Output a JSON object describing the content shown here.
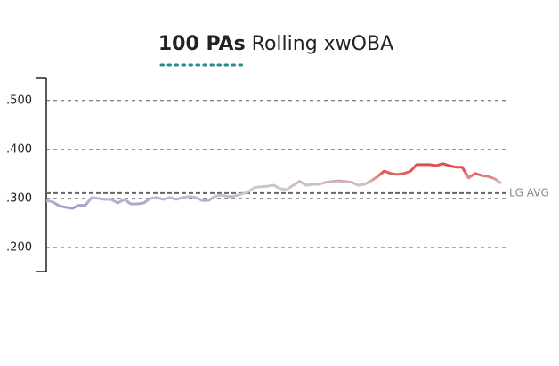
{
  "chart_data": {
    "type": "line",
    "title": {
      "emphasis": "100 PAs",
      "text": "Rolling xwOBA"
    },
    "values": [
      0.296,
      0.293,
      0.285,
      0.282,
      0.28,
      0.286,
      0.286,
      0.302,
      0.3,
      0.298,
      0.298,
      0.291,
      0.298,
      0.289,
      0.289,
      0.291,
      0.3,
      0.302,
      0.298,
      0.302,
      0.298,
      0.302,
      0.304,
      0.302,
      0.296,
      0.296,
      0.305,
      0.307,
      0.304,
      0.305,
      0.309,
      0.313,
      0.322,
      0.324,
      0.325,
      0.327,
      0.32,
      0.318,
      0.327,
      0.335,
      0.327,
      0.329,
      0.329,
      0.333,
      0.335,
      0.336,
      0.335,
      0.333,
      0.327,
      0.329,
      0.336,
      0.345,
      0.356,
      0.351,
      0.349,
      0.351,
      0.355,
      0.369,
      0.369,
      0.369,
      0.367,
      0.371,
      0.367,
      0.364,
      0.364,
      0.342,
      0.351,
      0.347,
      0.345,
      0.34,
      0.331
    ],
    "ylim": [
      0.151,
      0.545
    ],
    "yticks": [
      {
        "value": 0.5,
        "label": ".500"
      },
      {
        "value": 0.4,
        "label": ".400"
      },
      {
        "value": 0.3,
        "label": ".300"
      },
      {
        "value": 0.2,
        "label": ".200"
      }
    ],
    "grid": true,
    "reference_line": {
      "value": 0.311,
      "label": "LG AVG"
    }
  }
}
